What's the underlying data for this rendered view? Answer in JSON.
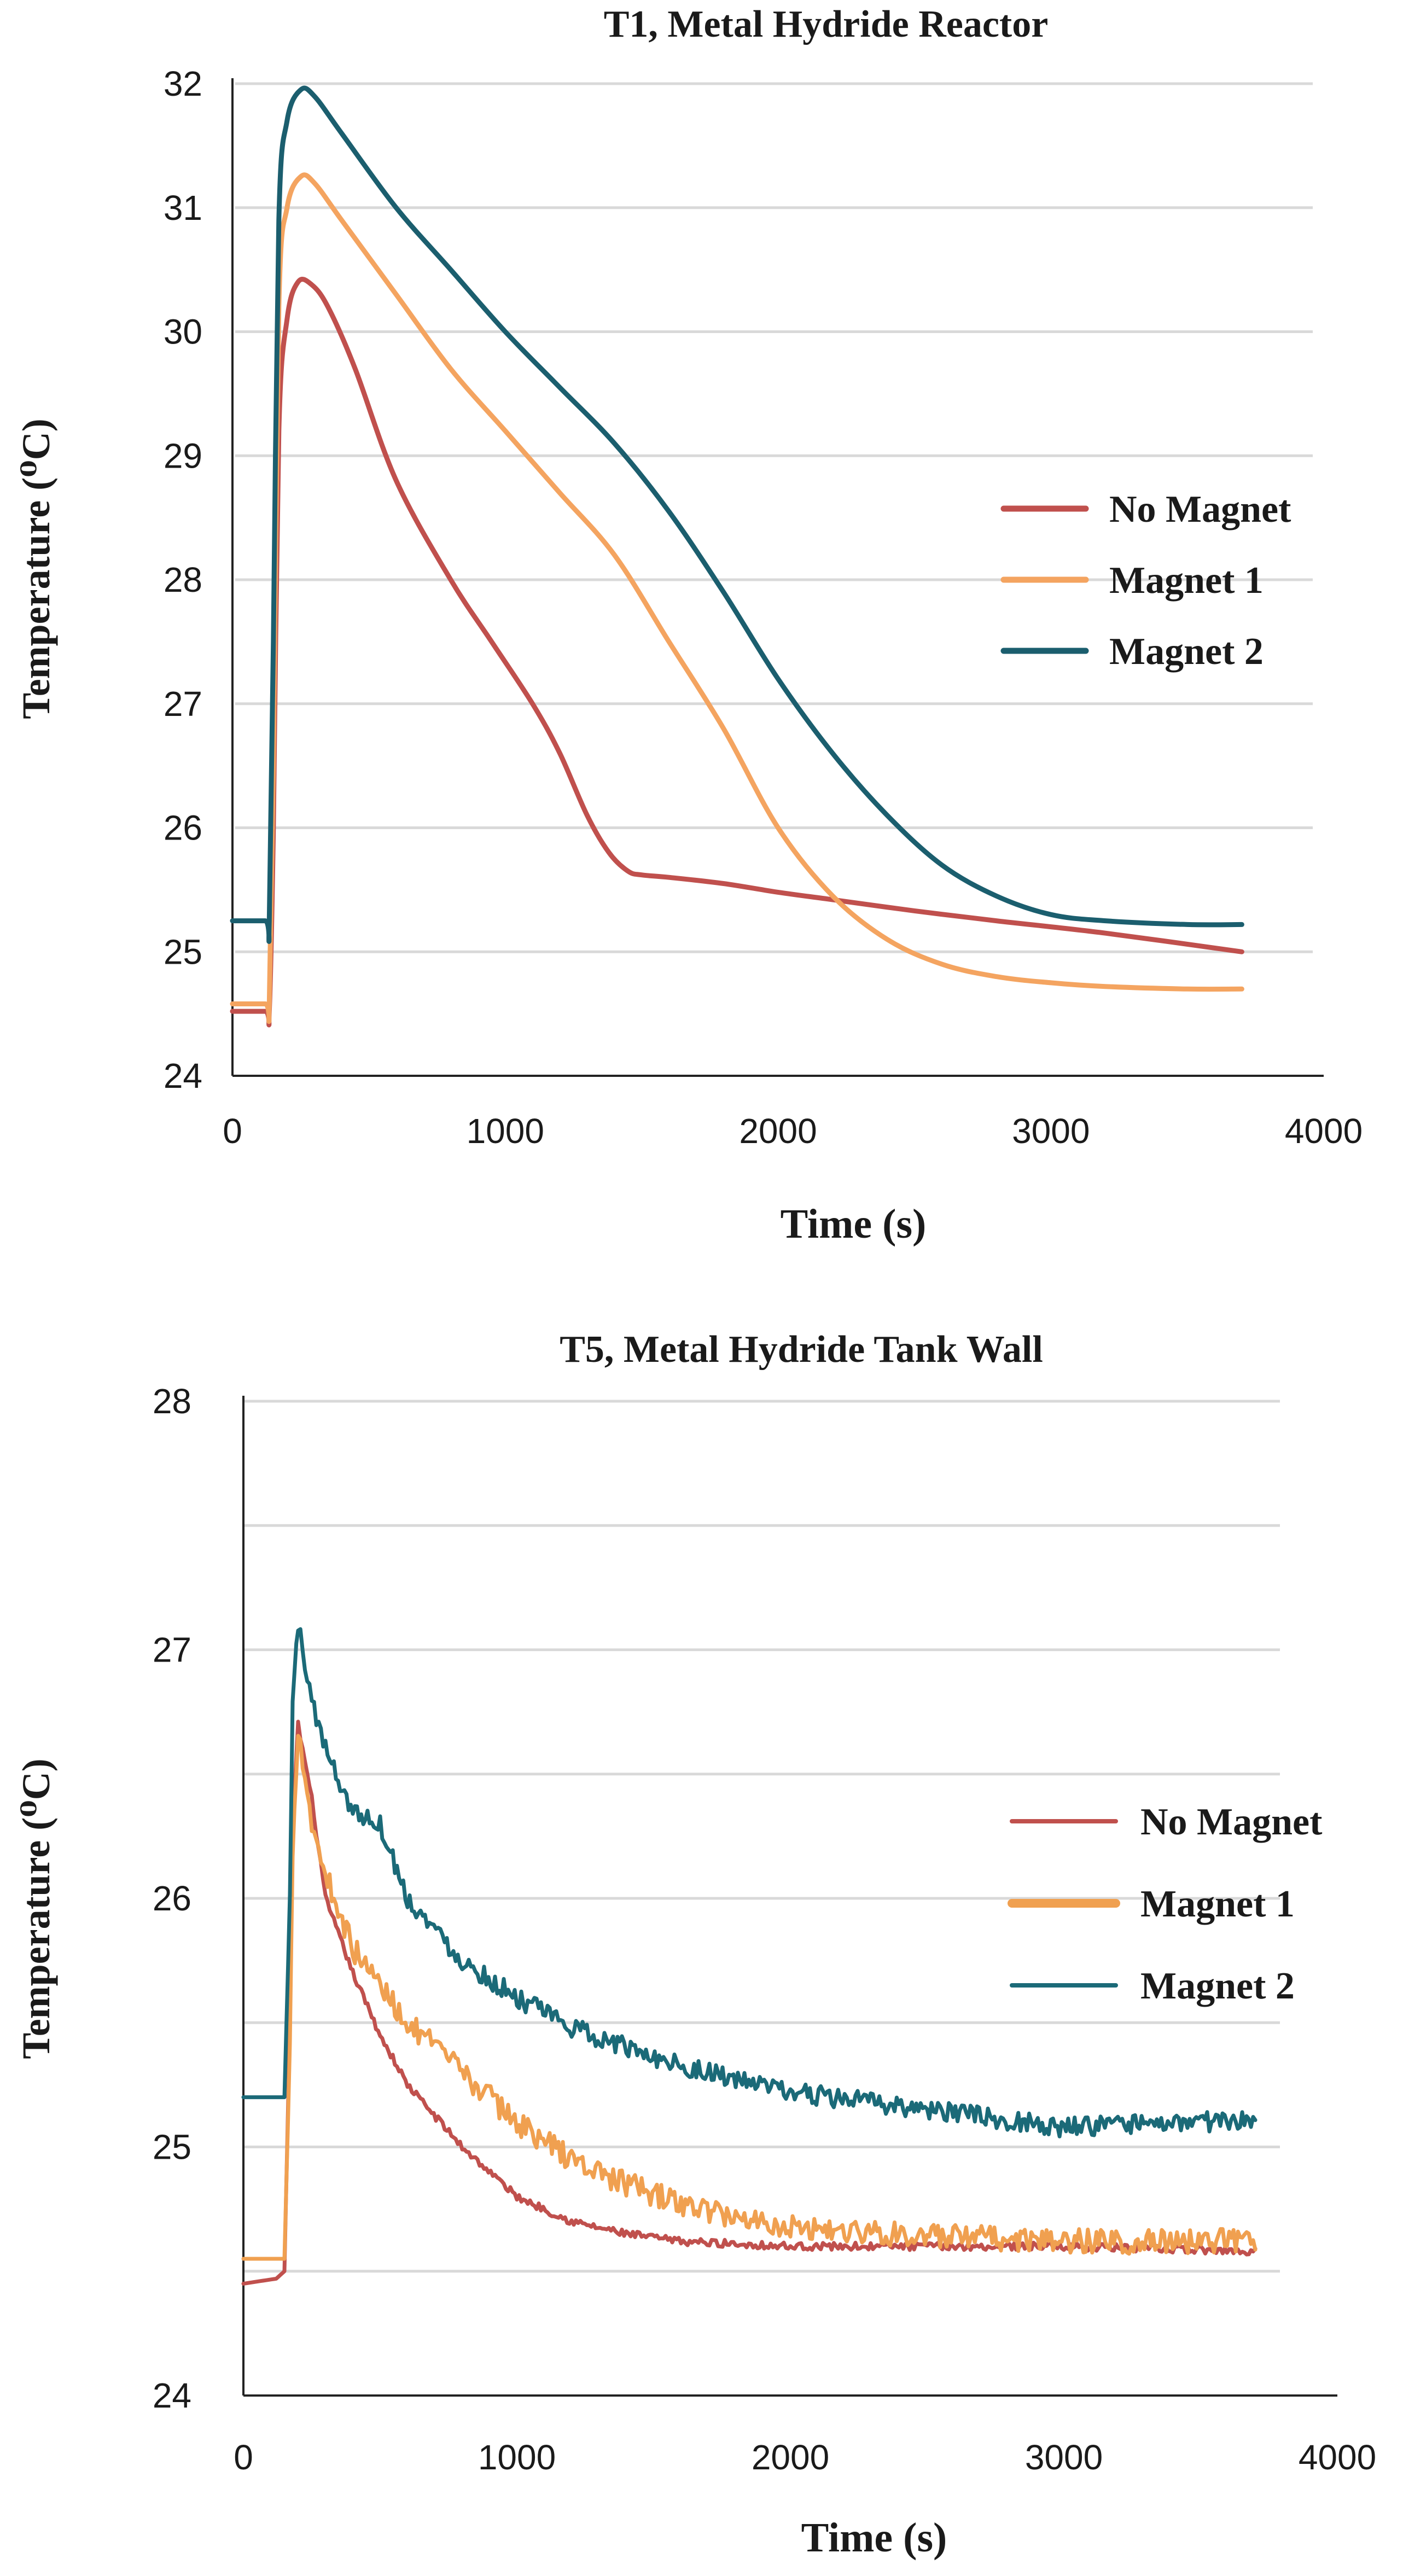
{
  "chart_data": [
    {
      "type": "line",
      "title": "T1, Metal Hydride Reactor",
      "xlabel": "Time (s)",
      "ylabel": "Temperature (⁰C)",
      "xlim": [
        0,
        4000
      ],
      "ylim": [
        24,
        32
      ],
      "xticks": [
        "0",
        "1000",
        "2000",
        "3000",
        "4000"
      ],
      "yticks": [
        "24",
        "25",
        "26",
        "27",
        "28",
        "29",
        "30",
        "31",
        "32"
      ],
      "legend_position": "right",
      "series": [
        {
          "name": "No Magnet",
          "color": "#c0504d",
          "noise": 0,
          "x": [
            0,
            120,
            135,
            150,
            170,
            200,
            240,
            290,
            350,
            450,
            600,
            800,
            950,
            1100,
            1200,
            1300,
            1380,
            1450,
            1500,
            1600,
            1800,
            2000,
            2200,
            2500,
            2800,
            3200,
            3700
          ],
          "y": [
            24.52,
            24.52,
            24.52,
            26.0,
            29.2,
            30.1,
            30.4,
            30.38,
            30.2,
            29.7,
            28.8,
            28.0,
            27.5,
            27.0,
            26.6,
            26.1,
            25.8,
            25.65,
            25.62,
            25.6,
            25.55,
            25.48,
            25.42,
            25.33,
            25.25,
            25.15,
            25.0
          ]
        },
        {
          "name": "Magnet 1",
          "color": "#f4a460",
          "noise": 0,
          "x": [
            0,
            120,
            135,
            150,
            170,
            200,
            250,
            300,
            400,
            600,
            800,
            1000,
            1200,
            1400,
            1600,
            1800,
            2000,
            2200,
            2400,
            2600,
            2800,
            3000,
            3200,
            3500,
            3700
          ],
          "y": [
            24.58,
            24.58,
            24.58,
            26.5,
            30.2,
            31.0,
            31.25,
            31.2,
            30.9,
            30.3,
            29.7,
            29.2,
            28.7,
            28.2,
            27.5,
            26.8,
            26.0,
            25.45,
            25.1,
            24.9,
            24.8,
            24.75,
            24.72,
            24.7,
            24.7
          ]
        },
        {
          "name": "Magnet 2",
          "color": "#1b5e6e",
          "noise": 0,
          "x": [
            0,
            120,
            135,
            150,
            170,
            200,
            250,
            300,
            400,
            600,
            800,
            1000,
            1200,
            1400,
            1600,
            1800,
            2000,
            2200,
            2400,
            2600,
            2800,
            3000,
            3200,
            3500,
            3700
          ],
          "y": [
            25.25,
            25.25,
            25.25,
            27.5,
            30.9,
            31.7,
            31.95,
            31.9,
            31.6,
            31.0,
            30.5,
            30.0,
            29.55,
            29.1,
            28.55,
            27.9,
            27.2,
            26.6,
            26.1,
            25.7,
            25.45,
            25.3,
            25.25,
            25.22,
            25.22
          ]
        }
      ]
    },
    {
      "type": "line",
      "title": "T5, Metal Hydride Tank Wall",
      "xlabel": "Time (s)",
      "ylabel": "Temperature (⁰C)",
      "xlim": [
        0,
        4000
      ],
      "ylim": [
        24,
        28
      ],
      "xticks": [
        "0",
        "1000",
        "2000",
        "3000",
        "4000"
      ],
      "yticks": [
        "24",
        "25",
        "26",
        "27",
        "28"
      ],
      "legend_position": "right",
      "series": [
        {
          "name": "No Magnet",
          "color": "#c0504d",
          "noise": 0.015,
          "x": [
            0,
            120,
            150,
            170,
            180,
            200,
            250,
            300,
            400,
            500,
            600,
            800,
            1000,
            1200,
            1400,
            1600,
            2000,
            2500,
            3000,
            3700
          ],
          "y": [
            24.45,
            24.47,
            24.5,
            25.5,
            26.3,
            26.7,
            26.4,
            26.0,
            25.7,
            25.45,
            25.25,
            25.0,
            24.8,
            24.7,
            24.65,
            24.62,
            24.6,
            24.6,
            24.6,
            24.58
          ]
        },
        {
          "name": "Magnet 1",
          "color": "#f0a050",
          "noise": 0.05,
          "x": [
            0,
            120,
            150,
            170,
            180,
            200,
            250,
            300,
            400,
            500,
            600,
            800,
            1000,
            1200,
            1400,
            1600,
            1800,
            2000,
            2500,
            3000,
            3700
          ],
          "y": [
            24.55,
            24.55,
            24.55,
            25.4,
            26.2,
            26.7,
            26.3,
            26.1,
            25.8,
            25.65,
            25.5,
            25.3,
            25.1,
            24.95,
            24.85,
            24.77,
            24.72,
            24.68,
            24.64,
            24.62,
            24.62
          ]
        },
        {
          "name": "Magnet 2",
          "color": "#1b6a78",
          "noise": 0.04,
          "x": [
            0,
            120,
            150,
            170,
            180,
            200,
            250,
            300,
            400,
            500,
            600,
            800,
            1000,
            1200,
            1400,
            1600,
            1800,
            2000,
            2500,
            3000,
            3300,
            3700
          ],
          "y": [
            25.2,
            25.2,
            25.2,
            26.0,
            26.8,
            27.1,
            26.8,
            26.6,
            26.35,
            26.3,
            26.0,
            25.75,
            25.6,
            25.48,
            25.4,
            25.33,
            25.27,
            25.22,
            25.15,
            25.08,
            25.09,
            25.11
          ]
        }
      ]
    }
  ]
}
